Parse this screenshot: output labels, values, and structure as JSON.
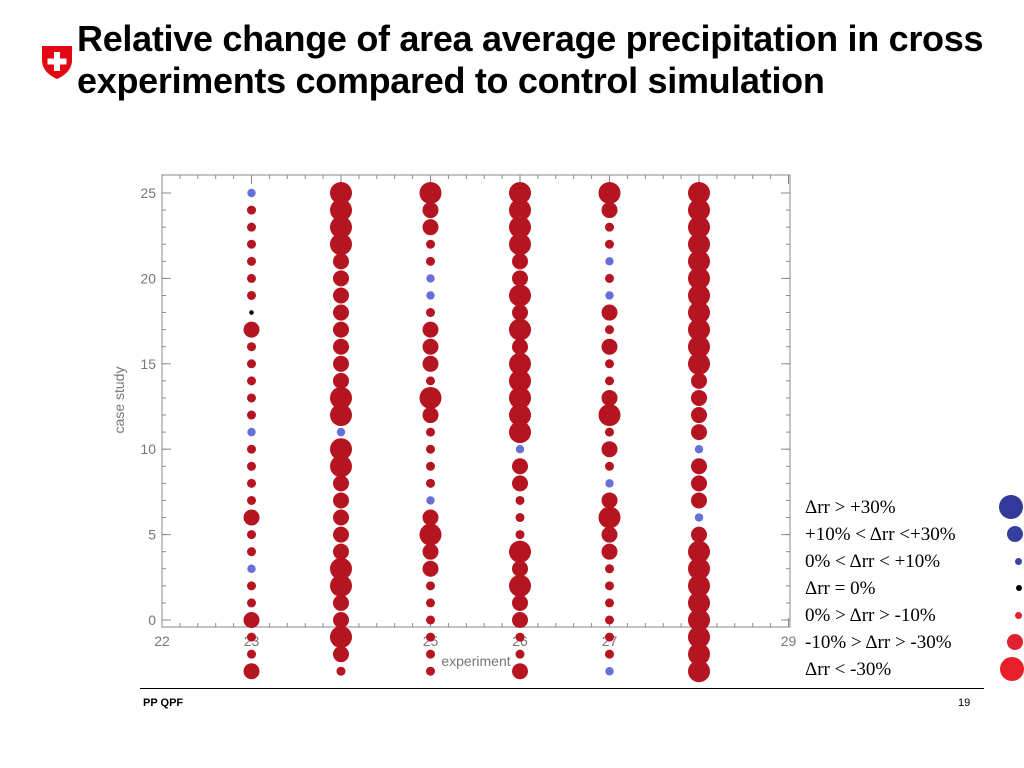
{
  "slide": {
    "title": "Relative change of area average precipitation in cross experiments compared to control simulation",
    "footer_left": "PP QPF",
    "page_number": "19",
    "logo_icon": "swiss-cross-shield-icon"
  },
  "chart_data": {
    "type": "scatter",
    "title": "",
    "xlabel": "experiment",
    "ylabel": "case study",
    "xlim": [
      22,
      29
    ],
    "ylim": [
      0,
      25
    ],
    "xticks": [
      "22",
      "23",
      "24",
      "25",
      "26",
      "27",
      "28",
      "29"
    ],
    "yticks": [
      "0",
      "5",
      "10",
      "15",
      "20",
      "25"
    ],
    "grid": false,
    "legend_position": "right-outside-bottom",
    "legend": [
      {
        "label": "Δrr > +30%",
        "category": "large_pos",
        "color": "#33399a"
      },
      {
        "label": "+10% <  Δrr <+30%",
        "category": "med_pos",
        "color": "#3340a0"
      },
      {
        "label": "0% < Δrr < +10%",
        "category": "small_pos",
        "color": "#3a43a8"
      },
      {
        "label": "Δrr = 0%",
        "category": "zero",
        "color": "#000000"
      },
      {
        "label": "0% > Δrr > -10%",
        "category": "small_neg",
        "color": "#e0212f"
      },
      {
        "label": "-10% > Δrr > -30%",
        "category": "med_neg",
        "color": "#e0212f"
      },
      {
        "label": "Δrr < -30%",
        "category": "large_neg",
        "color": "#e8202a"
      }
    ],
    "plot_colors": {
      "pos": "#6670d6",
      "neg": "#b51421",
      "zero": "#000000"
    },
    "series": [
      {
        "x": 23,
        "codes": "SNNNNNNZMNNNNNSNNNNMNNSNNMNNM"
      },
      {
        "x": 24,
        "codes": "LLLLMMMMMMMMLLSLLMMMMMLLMMLMN"
      },
      {
        "x": 25,
        "codes": "LMMNNSSNMMMNLMNNNNSMLMMNNNNNN"
      },
      {
        "x": 26,
        "codes": "LLLLMMLMLMLLLLLSMMNNNLMLMMNNM"
      },
      {
        "x": 27,
        "codes": "LMNNSNSMNMNNMLNMNSMLMMNNNNNNS"
      },
      {
        "x": 28,
        "codes": "LLLLLLLLLLLMMMMSMMMSMLLLLLLLL"
      }
    ]
  }
}
